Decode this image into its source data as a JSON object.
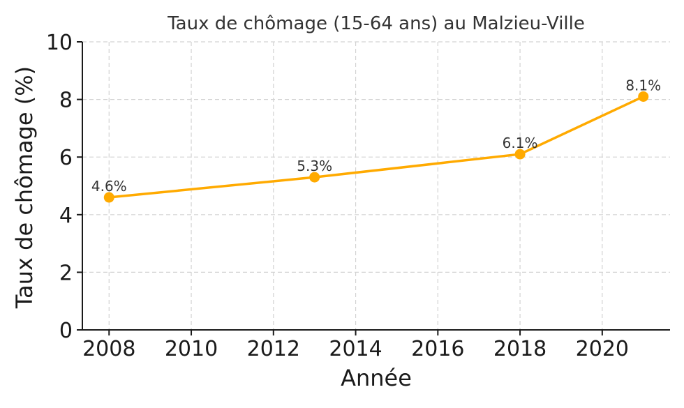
{
  "chart_data": {
    "type": "line",
    "title": "Taux de chômage (15-64 ans) au Malzieu-Ville",
    "xlabel": "Année",
    "ylabel": "Taux de chômage (%)",
    "x": [
      2008,
      2013,
      2018,
      2021
    ],
    "series": [
      {
        "values": [
          4.6,
          5.3,
          6.1,
          8.1
        ],
        "labels": [
          "4.6%",
          "5.3%",
          "6.1%",
          "8.1%"
        ]
      }
    ],
    "xlim": [
      2007.35,
      2021.65
    ],
    "ylim": [
      0,
      10
    ],
    "xticks": [
      2008,
      2010,
      2012,
      2014,
      2016,
      2018,
      2020
    ],
    "yticks": [
      0,
      2,
      4,
      6,
      8,
      10
    ],
    "grid": true,
    "colors": {
      "line": "#FFAA00"
    }
  }
}
